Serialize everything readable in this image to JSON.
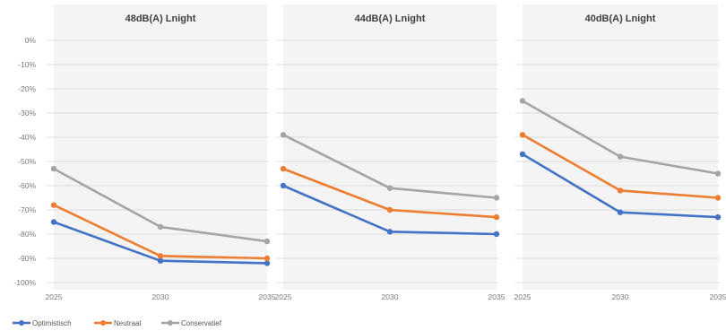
{
  "chart_data": {
    "type": "line",
    "y_ticks": [
      "0%",
      "-10%",
      "-20%",
      "-30%",
      "-40%",
      "-50%",
      "-60%",
      "-70%",
      "-80%",
      "-90%",
      "-100%"
    ],
    "ylim": [
      -100,
      0
    ],
    "grid": true,
    "legend_position": "bottom-left",
    "legend": [
      {
        "name": "Optimistisch",
        "color": "#4472c4"
      },
      {
        "name": "Neutraal",
        "color": "#ed7d31"
      },
      {
        "name": "Conservatief",
        "color": "#a5a5a5"
      }
    ],
    "panels": [
      {
        "title": "48dB(A) Lnight",
        "categories": [
          "2025",
          "2030",
          "2035"
        ],
        "series": [
          {
            "name": "Optimistisch",
            "values": [
              -75,
              -91,
              -92
            ]
          },
          {
            "name": "Neutraal",
            "values": [
              -68,
              -89,
              -90
            ]
          },
          {
            "name": "Conservatief",
            "values": [
              -53,
              -77,
              -83
            ]
          }
        ]
      },
      {
        "title": "44dB(A) Lnight",
        "categories": [
          "2025",
          "2030",
          "2035"
        ],
        "series": [
          {
            "name": "Optimistisch",
            "values": [
              -60,
              -79,
              -80
            ]
          },
          {
            "name": "Neutraal",
            "values": [
              -53,
              -70,
              -73
            ]
          },
          {
            "name": "Conservatief",
            "values": [
              -39,
              -61,
              -65
            ]
          }
        ]
      },
      {
        "title": "40dB(A) Lnight",
        "categories": [
          "2025",
          "2030",
          "2035"
        ],
        "series": [
          {
            "name": "Optimistisch",
            "values": [
              -47,
              -71,
              -73
            ]
          },
          {
            "name": "Neutraal",
            "values": [
              -39,
              -62,
              -65
            ]
          },
          {
            "name": "Conservatief",
            "values": [
              -25,
              -48,
              -55
            ]
          }
        ]
      }
    ]
  }
}
